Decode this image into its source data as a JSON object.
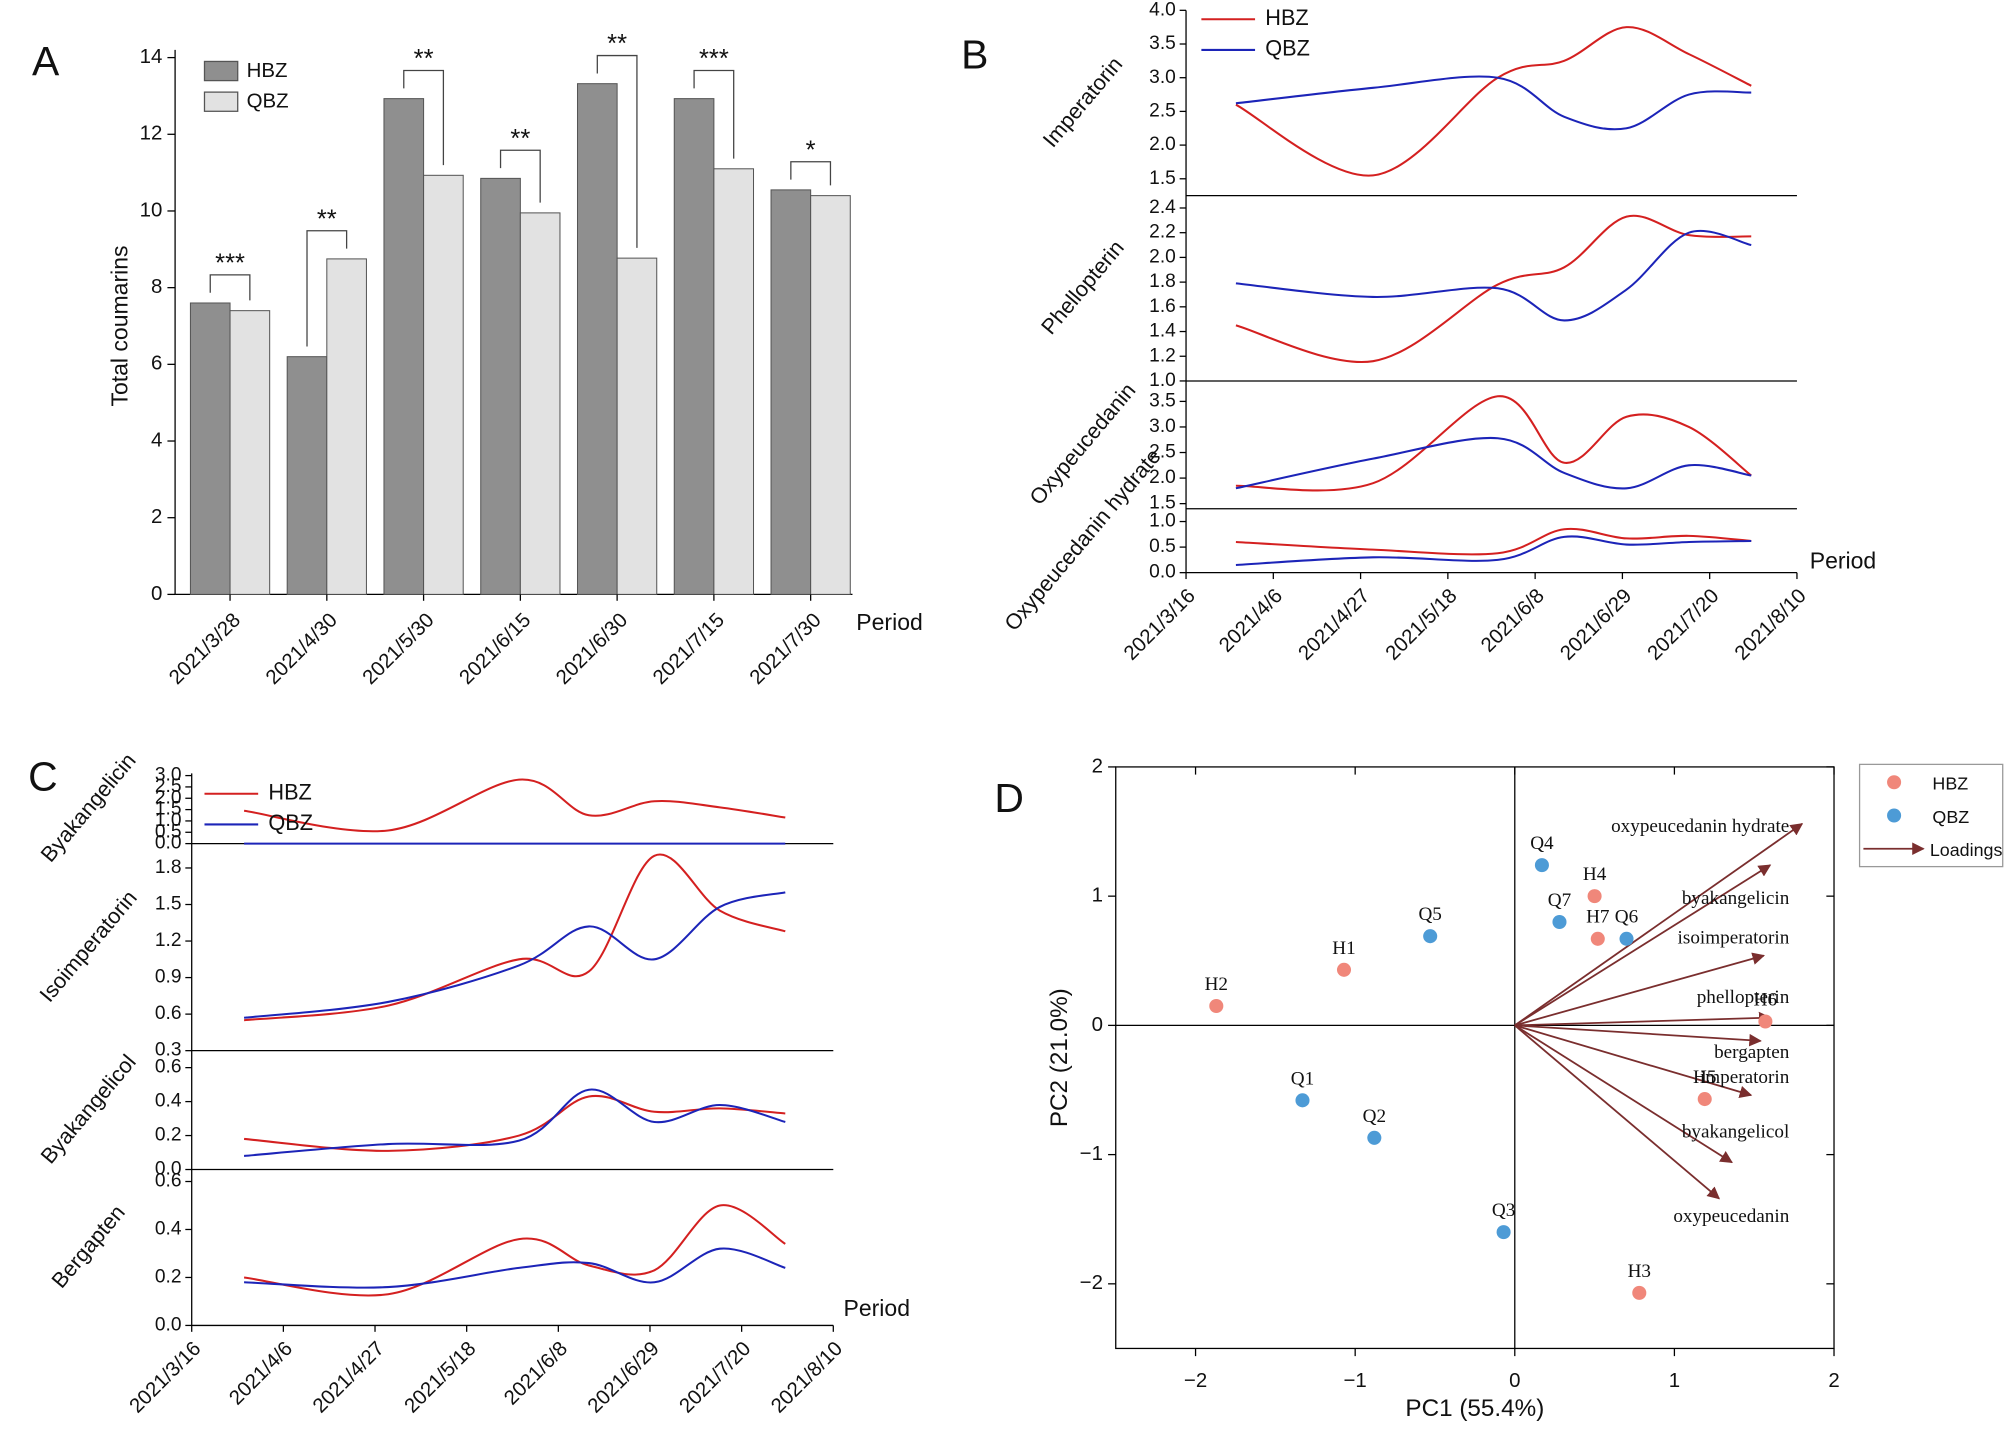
{
  "chart_data": [
    {
      "type": "bar",
      "panel_label": "A",
      "ylabel": "Total coumarins",
      "xlabel": "Period",
      "categories": [
        "2021/3/28",
        "2021/4/30",
        "2021/5/30",
        "2021/6/15",
        "2021/6/30",
        "2021/7/15",
        "2021/7/30"
      ],
      "series": [
        {
          "name": "HBZ",
          "color": "#8f8f8f",
          "values": [
            7.6,
            6.2,
            12.93,
            10.85,
            13.32,
            12.93,
            10.55
          ]
        },
        {
          "name": "QBZ",
          "color": "#e2e2e2",
          "values": [
            7.4,
            8.75,
            10.93,
            9.95,
            8.77,
            11.1,
            10.4
          ]
        }
      ],
      "significance": [
        "***",
        "**",
        "**",
        "**",
        "**",
        "***",
        "*"
      ],
      "ylim": [
        0,
        14
      ],
      "yticks": [
        0,
        2,
        4,
        6,
        8,
        10,
        12,
        14
      ]
    },
    {
      "type": "line",
      "panel_label": "B",
      "xlabel": "Period",
      "x": [
        "2021/3/28",
        "2021/4/30",
        "2021/5/30",
        "2021/6/15",
        "2021/6/30",
        "2021/7/15",
        "2021/7/30"
      ],
      "xlim": [
        "2021/3/16",
        "2021/8/10"
      ],
      "xticks": [
        "2021/3/16",
        "2021/4/6",
        "2021/4/27",
        "2021/5/18",
        "2021/6/8",
        "2021/6/29",
        "2021/7/20",
        "2021/8/10"
      ],
      "series": [
        {
          "name": "HBZ",
          "color": "#d42020"
        },
        {
          "name": "QBZ",
          "color": "#1c24b8"
        }
      ],
      "subplots": [
        {
          "ylabel": "Imperatorin",
          "ylim": [
            1.25,
            4.0
          ],
          "yticks": [
            1.5,
            {
              "value": 2,
              "label": "2.0"
            },
            2.5,
            {
              "value": 3,
              "label": "3.0"
            },
            3.5,
            {
              "value": 4,
              "label": "4.0"
            }
          ],
          "values": [
            [
              2.6,
              1.55,
              3.0,
              3.25,
              3.75,
              3.35,
              2.88
            ],
            [
              2.62,
              2.85,
              3.0,
              2.42,
              2.25,
              2.75,
              2.78
            ]
          ]
        },
        {
          "ylabel": "Phellopterin",
          "ylim": [
            1.0,
            2.5
          ],
          "yticks": [
            {
              "value": 1,
              "label": "1.0"
            },
            1.2,
            1.4,
            1.6,
            1.8,
            {
              "value": 2,
              "label": "2.0"
            },
            2.2,
            2.4
          ],
          "values": [
            [
              1.45,
              1.16,
              1.78,
              1.92,
              2.33,
              2.18,
              2.17
            ],
            [
              1.79,
              1.68,
              1.75,
              1.49,
              1.74,
              2.2,
              2.1
            ]
          ]
        },
        {
          "ylabel": "Oxypeucedanin",
          "ylim": [
            1.4,
            3.9
          ],
          "yticks": [
            1.5,
            {
              "value": 2,
              "label": "2.0"
            },
            2.5,
            {
              "value": 3,
              "label": "3.0"
            },
            3.5
          ],
          "values": [
            [
              1.85,
              1.9,
              3.6,
              2.3,
              3.2,
              3.0,
              2.05
            ],
            [
              1.8,
              2.38,
              2.78,
              2.1,
              1.8,
              2.25,
              2.05
            ]
          ]
        },
        {
          "ylabel": "Oxypeucedanin hydrate",
          "ylim": [
            0,
            1.25
          ],
          "yticks": [
            {
              "value": 0,
              "label": "0.0"
            },
            0.5,
            {
              "value": 1,
              "label": "1.0"
            }
          ],
          "values": [
            [
              0.6,
              0.45,
              0.38,
              0.85,
              0.67,
              0.72,
              0.62
            ],
            [
              0.15,
              0.3,
              0.25,
              0.7,
              0.55,
              0.6,
              0.62
            ]
          ]
        }
      ]
    },
    {
      "type": "line",
      "panel_label": "C",
      "xlabel": "Period",
      "x": [
        "2021/3/28",
        "2021/4/30",
        "2021/5/30",
        "2021/6/15",
        "2021/6/30",
        "2021/7/15",
        "2021/7/30"
      ],
      "xlim": [
        "2021/3/16",
        "2021/8/10"
      ],
      "xticks": [
        "2021/3/16",
        "2021/4/6",
        "2021/4/27",
        "2021/5/18",
        "2021/6/8",
        "2021/6/29",
        "2021/7/20",
        "2021/8/10"
      ],
      "series": [
        {
          "name": "HBZ",
          "color": "#d42020"
        },
        {
          "name": "QBZ",
          "color": "#1c24b8"
        }
      ],
      "subplots": [
        {
          "ylabel": "Byakangelicin",
          "ylim": [
            0,
            3.1
          ],
          "yticks": [
            {
              "value": 0,
              "label": "0.0"
            },
            0.5,
            {
              "value": 1,
              "label": "1.0"
            },
            1.5,
            {
              "value": 2,
              "label": "2.0"
            },
            2.5,
            {
              "value": 3,
              "label": "3.0"
            }
          ],
          "values": [
            [
              1.45,
              0.58,
              2.82,
              1.25,
              1.87,
              1.6,
              1.15
            ],
            [
              0,
              0,
              0,
              0,
              0,
              0,
              0
            ]
          ]
        },
        {
          "ylabel": "Isoimperatorin",
          "ylim": [
            0.3,
            2.0
          ],
          "yticks": [
            0.3,
            0.6,
            0.9,
            1.2,
            1.5,
            1.8
          ],
          "values": [
            [
              0.55,
              0.67,
              1.05,
              0.95,
              1.9,
              1.45,
              1.28
            ],
            [
              0.57,
              0.7,
              1.0,
              1.32,
              1.05,
              1.48,
              1.6
            ]
          ]
        },
        {
          "ylabel": "Byakangelicol",
          "ylim": [
            0,
            0.7
          ],
          "yticks": [
            {
              "value": 0,
              "label": "0.0"
            },
            0.2,
            0.4,
            0.6
          ],
          "values": [
            [
              0.18,
              0.11,
              0.2,
              0.43,
              0.34,
              0.36,
              0.33
            ],
            [
              0.08,
              0.15,
              0.17,
              0.47,
              0.28,
              0.38,
              0.28
            ]
          ]
        },
        {
          "ylabel": "Bergapten",
          "ylim": [
            0,
            0.65
          ],
          "yticks": [
            {
              "value": 0,
              "label": "0.0"
            },
            0.2,
            0.4,
            0.6
          ],
          "values": [
            [
              0.2,
              0.13,
              0.36,
              0.25,
              0.23,
              0.5,
              0.34
            ],
            [
              0.18,
              0.16,
              0.24,
              0.26,
              0.18,
              0.32,
              0.24
            ]
          ]
        }
      ]
    },
    {
      "type": "scatter",
      "panel_label": "D",
      "xlabel": "PC1 (55.4%)",
      "ylabel": "PC2 (21.0%)",
      "xlim": [
        -2.5,
        2
      ],
      "ylim": [
        -2.5,
        2
      ],
      "xticks": [
        {
          "value": -2,
          "label": "−2"
        },
        {
          "value": -1,
          "label": "−1"
        },
        0,
        1,
        2
      ],
      "yticks": [
        {
          "value": -2,
          "label": "−2"
        },
        {
          "value": -1,
          "label": "−1"
        },
        0,
        1,
        2
      ],
      "series": [
        {
          "name": "HBZ",
          "color": "#f0877a",
          "labels": [
            "H1",
            "H2",
            "H3",
            "H4",
            "H5",
            "H6",
            "H7"
          ],
          "x": [
            -1.07,
            -1.87,
            0.78,
            0.5,
            1.19,
            1.57,
            0.52
          ],
          "values": [
            0.43,
            0.15,
            -2.07,
            1.0,
            -0.57,
            0.03,
            0.67
          ]
        },
        {
          "name": "QBZ",
          "color": "#4d9bd6",
          "labels": [
            "Q1",
            "Q2",
            "Q3",
            "Q4",
            "Q5",
            "Q6",
            "Q7"
          ],
          "x": [
            -1.33,
            -0.88,
            -0.07,
            0.17,
            -0.53,
            0.7,
            0.28
          ],
          "values": [
            -0.58,
            -0.87,
            -1.6,
            1.24,
            0.69,
            0.67,
            0.8
          ]
        }
      ],
      "loadings": {
        "name": "Loadings",
        "color": "#7a2e2e",
        "labels": [
          "oxypeucedanin hydrate",
          "byakangelicin",
          "isoimperatorin",
          "phellopterin",
          "bergapten",
          "imperatorin",
          "byakangelicol",
          "oxypeucedanin"
        ],
        "x": [
          1.8,
          1.6,
          1.56,
          1.6,
          1.54,
          1.48,
          1.36,
          1.28
        ],
        "y": [
          1.56,
          1.24,
          0.54,
          0.06,
          -0.12,
          -0.54,
          -1.06,
          -1.34
        ]
      }
    }
  ]
}
